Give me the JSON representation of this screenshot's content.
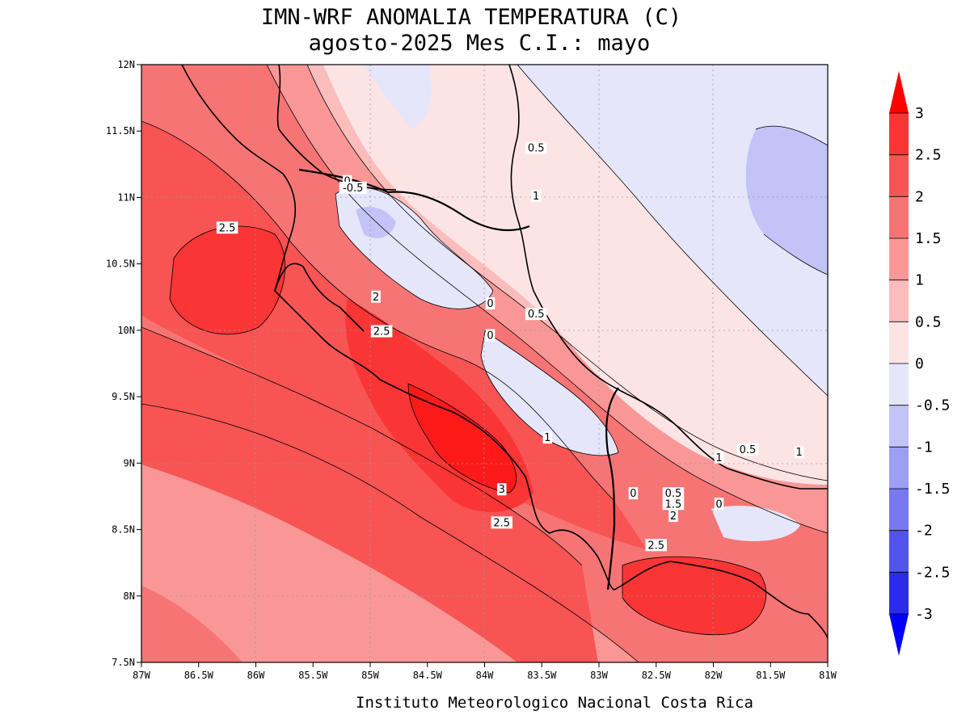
{
  "title": {
    "line1": "IMN-WRF  ANOMALIA TEMPERATURA (C)",
    "line2": "agosto-2025 Mes C.I.: mayo"
  },
  "credit": "Instituto Meteorologico Nacional Costa Rica",
  "axes": {
    "lat_labels": [
      "12N",
      "11.5N",
      "11N",
      "10.5N",
      "10N",
      "9.5N",
      "9N",
      "8.5N",
      "8N",
      "7.5N"
    ],
    "lon_labels": [
      "87W",
      "86.5W",
      "86W",
      "85.5W",
      "85W",
      "84.5W",
      "84W",
      "83.5W",
      "83W",
      "82.5W",
      "82W",
      "81.5W",
      "81W"
    ],
    "lat_range": [
      7.5,
      12
    ],
    "lon_range": [
      -87,
      -81
    ]
  },
  "colorbar": {
    "labels": [
      "3",
      "2.5",
      "2",
      "1.5",
      "1",
      "0.5",
      "0",
      "-0.5",
      "-1",
      "-1.5",
      "-2",
      "-2.5",
      "-3"
    ],
    "colors": [
      "#ff1a1a",
      "#fa3535",
      "#f85454",
      "#f77474",
      "#f99797",
      "#fbbcbc",
      "#fde4e4",
      "#e6e6fb",
      "#c3c3f7",
      "#9e9ef4",
      "#7878f1",
      "#5353ee",
      "#2b2bea",
      "#0a0aff"
    ],
    "top_arrow_color": "#ff0000",
    "bottom_arrow_color": "#0000ff"
  },
  "contour_labels": [
    {
      "text": "2.5",
      "lon": -86.25,
      "lat": 10.77
    },
    {
      "text": "0",
      "lon": -85.2,
      "lat": 11.12
    },
    {
      "text": "-0.5",
      "lon": -85.15,
      "lat": 11.07
    },
    {
      "text": "0.5",
      "lon": -83.55,
      "lat": 11.37
    },
    {
      "text": "1",
      "lon": -83.55,
      "lat": 11.01
    },
    {
      "text": "2",
      "lon": -84.95,
      "lat": 10.25
    },
    {
      "text": "0",
      "lon": -83.95,
      "lat": 10.2
    },
    {
      "text": "0.5",
      "lon": -83.55,
      "lat": 10.12
    },
    {
      "text": "2.5",
      "lon": -84.9,
      "lat": 9.99
    },
    {
      "text": "0",
      "lon": -83.95,
      "lat": 9.96
    },
    {
      "text": "1",
      "lon": -83.45,
      "lat": 9.19
    },
    {
      "text": "3",
      "lon": -83.85,
      "lat": 8.8
    },
    {
      "text": "2.5",
      "lon": -83.85,
      "lat": 8.55
    },
    {
      "text": "0",
      "lon": -82.7,
      "lat": 8.77
    },
    {
      "text": "0.5",
      "lon": -82.35,
      "lat": 8.77
    },
    {
      "text": "1.5",
      "lon": -82.35,
      "lat": 8.69
    },
    {
      "text": "0",
      "lon": -81.95,
      "lat": 8.69
    },
    {
      "text": "2",
      "lon": -82.35,
      "lat": 8.6
    },
    {
      "text": "2.5",
      "lon": -82.5,
      "lat": 8.38
    },
    {
      "text": "1",
      "lon": -81.95,
      "lat": 9.04
    },
    {
      "text": "0.5",
      "lon": -81.7,
      "lat": 9.1
    },
    {
      "text": "1",
      "lon": -81.25,
      "lat": 9.08
    }
  ]
}
